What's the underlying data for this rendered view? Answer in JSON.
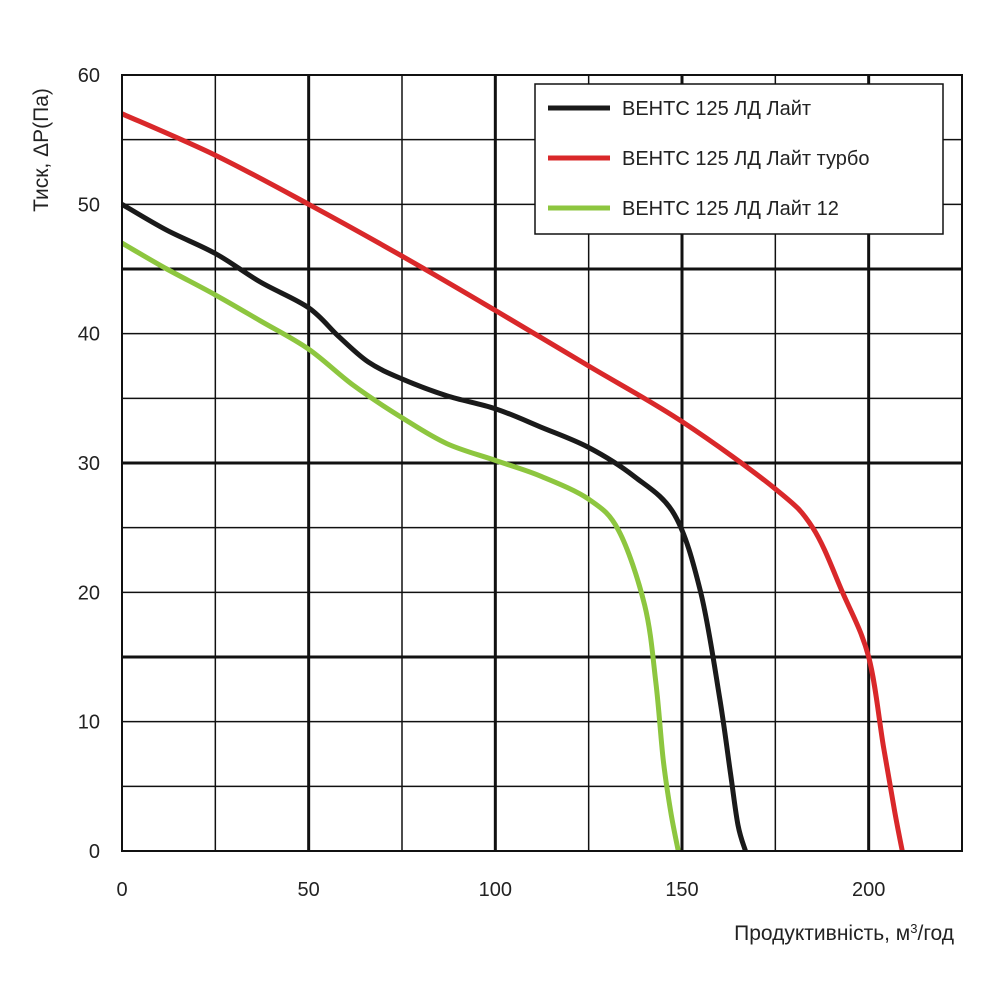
{
  "chart_data": {
    "type": "line",
    "xlabel_main": "Продуктивність, м",
    "xlabel_sup": "3",
    "xlabel_tail": "/год",
    "ylabel": "Тиск, ΔP(Па)",
    "xlim": [
      0,
      225
    ],
    "ylim": [
      0,
      60
    ],
    "xticks": [
      0,
      50,
      100,
      150,
      200
    ],
    "yticks": [
      0,
      10,
      20,
      30,
      40,
      50,
      60
    ],
    "x_grid": [
      0,
      25,
      50,
      75,
      100,
      125,
      150,
      175,
      200,
      225
    ],
    "y_grid": [
      0,
      5,
      10,
      15,
      20,
      25,
      30,
      35,
      40,
      45,
      50,
      55,
      60
    ],
    "major_x_grid": [
      50,
      100,
      150,
      200
    ],
    "major_y_grid": [
      15,
      30,
      45
    ],
    "series": [
      {
        "name": "ВЕНТС 125 ЛД Лайт",
        "color": "#1a1a1a",
        "points": [
          [
            0,
            50
          ],
          [
            12,
            48
          ],
          [
            25,
            46.2
          ],
          [
            37,
            44
          ],
          [
            50,
            42
          ],
          [
            58,
            39.8
          ],
          [
            66,
            37.8
          ],
          [
            75,
            36.5
          ],
          [
            87,
            35.2
          ],
          [
            100,
            34.2
          ],
          [
            112,
            32.8
          ],
          [
            125,
            31.2
          ],
          [
            137,
            29
          ],
          [
            148,
            26
          ],
          [
            155,
            20
          ],
          [
            160,
            12
          ],
          [
            163,
            6
          ],
          [
            165,
            2
          ],
          [
            167,
            0
          ]
        ]
      },
      {
        "name": "ВЕНТС 125 ЛД Лайт турбо",
        "color": "#d9282a",
        "points": [
          [
            0,
            57
          ],
          [
            25,
            53.8
          ],
          [
            50,
            50
          ],
          [
            75,
            46
          ],
          [
            100,
            41.8
          ],
          [
            125,
            37.5
          ],
          [
            150,
            33.2
          ],
          [
            175,
            28
          ],
          [
            185,
            25
          ],
          [
            193,
            20
          ],
          [
            200,
            15
          ],
          [
            204,
            8
          ],
          [
            207,
            3
          ],
          [
            209,
            0
          ]
        ]
      },
      {
        "name": "ВЕНТС 125 ЛД Лайт 12",
        "color": "#8dc63f",
        "points": [
          [
            0,
            47
          ],
          [
            12,
            45
          ],
          [
            25,
            43
          ],
          [
            37,
            41
          ],
          [
            50,
            38.8
          ],
          [
            62,
            36
          ],
          [
            75,
            33.5
          ],
          [
            87,
            31.5
          ],
          [
            100,
            30.2
          ],
          [
            112,
            29
          ],
          [
            125,
            27.2
          ],
          [
            133,
            24.8
          ],
          [
            140,
            19
          ],
          [
            143,
            13
          ],
          [
            145,
            7
          ],
          [
            147,
            3
          ],
          [
            149,
            0
          ]
        ]
      }
    ]
  }
}
